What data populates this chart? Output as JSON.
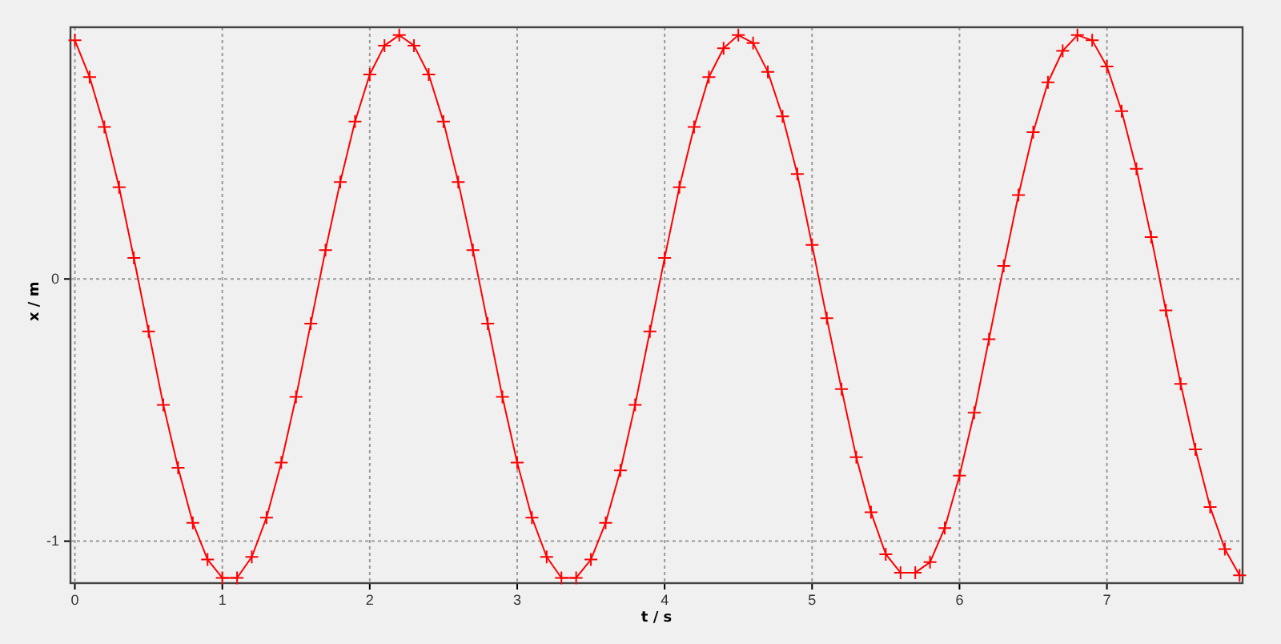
{
  "chart_data": {
    "type": "line",
    "xlabel": "t / s",
    "ylabel": "x / m",
    "x": [
      0,
      0.1,
      0.2,
      0.3,
      0.4,
      0.5,
      0.6,
      0.7,
      0.8,
      0.9,
      1.0,
      1.1,
      1.2,
      1.3,
      1.4,
      1.5,
      1.6,
      1.7,
      1.8,
      1.9,
      2.0,
      2.1,
      2.2,
      2.3,
      2.4,
      2.5,
      2.6,
      2.7,
      2.8,
      2.9,
      3.0,
      3.1,
      3.2,
      3.3,
      3.4,
      3.5,
      3.6,
      3.7,
      3.8,
      3.9,
      4.0,
      4.1,
      4.2,
      4.3,
      4.4,
      4.5,
      4.6,
      4.7,
      4.8,
      4.9,
      5.0,
      5.1,
      5.2,
      5.3,
      5.4,
      5.5,
      5.6,
      5.7,
      5.8,
      5.9,
      6.0,
      6.1,
      6.2,
      6.3,
      6.4,
      6.5,
      6.6,
      6.7,
      6.8,
      6.9,
      7.0,
      7.1,
      7.2,
      7.3,
      7.4,
      7.5,
      7.6,
      7.7,
      7.8,
      7.9
    ],
    "series": [
      {
        "color": "#ff0000",
        "values": [
          0.91,
          0.77,
          0.58,
          0.35,
          0.08,
          -0.2,
          -0.48,
          -0.72,
          -0.93,
          -1.07,
          -1.14,
          -1.14,
          -1.06,
          -0.91,
          -0.7,
          -0.45,
          -0.17,
          0.11,
          0.37,
          0.6,
          0.78,
          0.89,
          0.93,
          0.89,
          0.78,
          0.6,
          0.37,
          0.11,
          -0.17,
          -0.45,
          -0.7,
          -0.91,
          -1.06,
          -1.14,
          -1.14,
          -1.07,
          -0.93,
          -0.73,
          -0.48,
          -0.2,
          0.08,
          0.35,
          0.58,
          0.77,
          0.88,
          0.93,
          0.9,
          0.79,
          0.62,
          0.4,
          0.13,
          -0.15,
          -0.42,
          -0.68,
          -0.89,
          -1.05,
          -1.12,
          -1.12,
          -1.08,
          -0.95,
          -0.75,
          -0.51,
          -0.23,
          0.05,
          0.32,
          0.56,
          0.75,
          0.87,
          0.93,
          0.91,
          0.81,
          0.64,
          0.42,
          0.16,
          -0.12,
          -0.4,
          -0.65,
          -0.87,
          -1.03,
          -1.13
        ]
      }
    ],
    "xlim": [
      -0.03,
      7.92
    ],
    "ylim": [
      -1.16,
      0.96
    ],
    "xticks": [
      0,
      1,
      2,
      3,
      4,
      5,
      6,
      7
    ],
    "yticks": [
      -1,
      0
    ],
    "grid": true,
    "marker": "cross",
    "line_style": "solid"
  }
}
